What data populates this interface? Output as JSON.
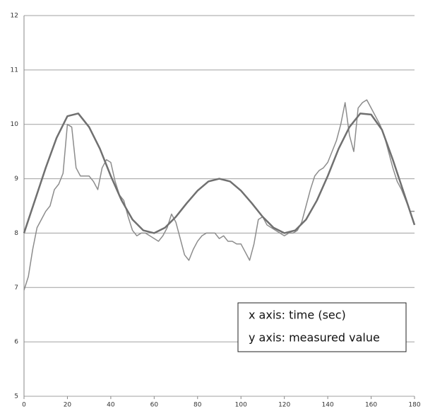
{
  "chart_data": {
    "type": "line",
    "annotations": [
      "x axis: time (sec)",
      "y axis: measured value"
    ],
    "series": [
      {
        "color": "#707070",
        "width": 2.5,
        "x": [
          0,
          5,
          10,
          15,
          20,
          25,
          30,
          35,
          40,
          45,
          50,
          55,
          60,
          65,
          70,
          75,
          80,
          85,
          90,
          95,
          100,
          105,
          110,
          115,
          120,
          125,
          130,
          135,
          140,
          145,
          150,
          155,
          160,
          165,
          170,
          175,
          180
        ],
        "values": [
          8.0,
          8.6,
          9.2,
          9.75,
          10.15,
          10.2,
          9.95,
          9.55,
          9.05,
          8.6,
          8.25,
          8.05,
          8.0,
          8.1,
          8.3,
          8.55,
          8.78,
          8.95,
          9.0,
          8.95,
          8.78,
          8.55,
          8.3,
          8.1,
          8.0,
          8.05,
          8.25,
          8.6,
          9.05,
          9.55,
          9.95,
          10.2,
          10.18,
          9.9,
          9.35,
          8.75,
          8.15
        ]
      },
      {
        "color": "#8c8c8c",
        "width": 1.5,
        "x": [
          0,
          2,
          4,
          6,
          8,
          10,
          12,
          14,
          16,
          18,
          20,
          22,
          24,
          26,
          28,
          30,
          32,
          34,
          36,
          38,
          40,
          42,
          44,
          46,
          48,
          50,
          52,
          54,
          56,
          58,
          60,
          62,
          64,
          66,
          68,
          70,
          72,
          74,
          76,
          78,
          80,
          82,
          84,
          86,
          88,
          90,
          92,
          94,
          96,
          98,
          100,
          102,
          104,
          106,
          108,
          110,
          112,
          114,
          116,
          118,
          120,
          122,
          124,
          126,
          128,
          130,
          132,
          134,
          136,
          138,
          140,
          142,
          144,
          146,
          148,
          150,
          152,
          154,
          156,
          158,
          160,
          162,
          164,
          166,
          168,
          170,
          172,
          174,
          176,
          178,
          180
        ],
        "values": [
          6.95,
          7.2,
          7.7,
          8.1,
          8.25,
          8.4,
          8.5,
          8.8,
          8.9,
          9.1,
          10.0,
          9.95,
          9.2,
          9.05,
          9.05,
          9.05,
          8.95,
          8.8,
          9.2,
          9.35,
          9.3,
          8.95,
          8.7,
          8.6,
          8.3,
          8.05,
          7.95,
          8.0,
          8.0,
          7.95,
          7.9,
          7.85,
          7.95,
          8.1,
          8.35,
          8.2,
          7.9,
          7.6,
          7.5,
          7.7,
          7.85,
          7.95,
          8.0,
          8.0,
          8.0,
          7.9,
          7.95,
          7.85,
          7.85,
          7.8,
          7.8,
          7.65,
          7.5,
          7.8,
          8.25,
          8.3,
          8.15,
          8.1,
          8.05,
          8.0,
          7.95,
          8.0,
          8.0,
          8.05,
          8.2,
          8.5,
          8.8,
          9.05,
          9.15,
          9.2,
          9.3,
          9.5,
          9.7,
          10.0,
          10.4,
          9.8,
          9.5,
          10.3,
          10.4,
          10.45,
          10.3,
          10.15,
          10.0,
          9.8,
          9.5,
          9.2,
          8.95,
          8.8,
          8.6,
          8.4,
          8.4
        ]
      }
    ],
    "xlim": [
      0,
      180
    ],
    "xticks": [
      0,
      20,
      40,
      60,
      80,
      100,
      120,
      140,
      160,
      180
    ],
    "ylim": [
      5,
      12
    ],
    "yticks": [
      5,
      6,
      7,
      8,
      9,
      10,
      11,
      12
    ],
    "grid": true
  }
}
